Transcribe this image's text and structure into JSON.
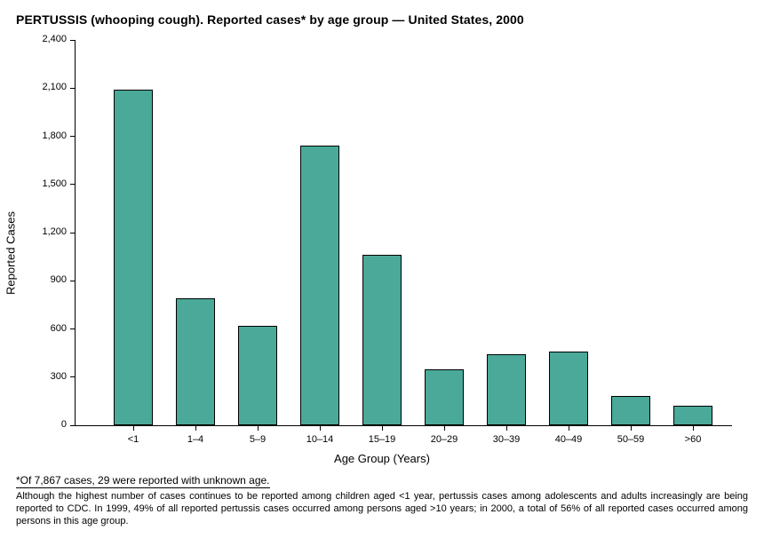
{
  "title": "PERTUSSIS (whooping cough). Reported cases* by age group — United States, 2000",
  "chart": {
    "type": "bar",
    "ylabel": "Reported Cases",
    "xlabel": "Age Group (Years)",
    "ylim": [
      0,
      2400
    ],
    "ytick_step": 300,
    "yticks": [
      0,
      300,
      600,
      900,
      1200,
      1500,
      1800,
      2100,
      2400
    ],
    "ytick_labels": [
      "0",
      "300",
      "600",
      "900",
      "1,200",
      "1,500",
      "1,800",
      "2,100",
      "2,400"
    ],
    "categories": [
      "<1",
      "1–4",
      "5–9",
      "10–14",
      "15–19",
      "20–29",
      "30–39",
      "40–49",
      "50–59",
      ">60"
    ],
    "values": [
      2090,
      790,
      620,
      1740,
      1060,
      350,
      440,
      460,
      180,
      120
    ],
    "bar_color": "#4aa998",
    "bar_border_color": "#000000",
    "axis_color": "#000000",
    "background_color": "#ffffff",
    "bar_width_ratio": 0.62,
    "title_fontsize_pt": 11,
    "label_fontsize_pt": 10,
    "tick_fontsize_pt": 8.5
  },
  "footnote": "*Of 7,867 cases, 29 were reported with unknown age.",
  "caption": "Although the highest number of cases continues to be reported among children aged <1 year, pertussis cases among adolescents and adults increasingly are being reported to CDC. In 1999, 49% of all reported pertussis cases occurred among persons aged >10 years; in 2000, a total of 56% of all reported cases occurred among persons in this age group."
}
